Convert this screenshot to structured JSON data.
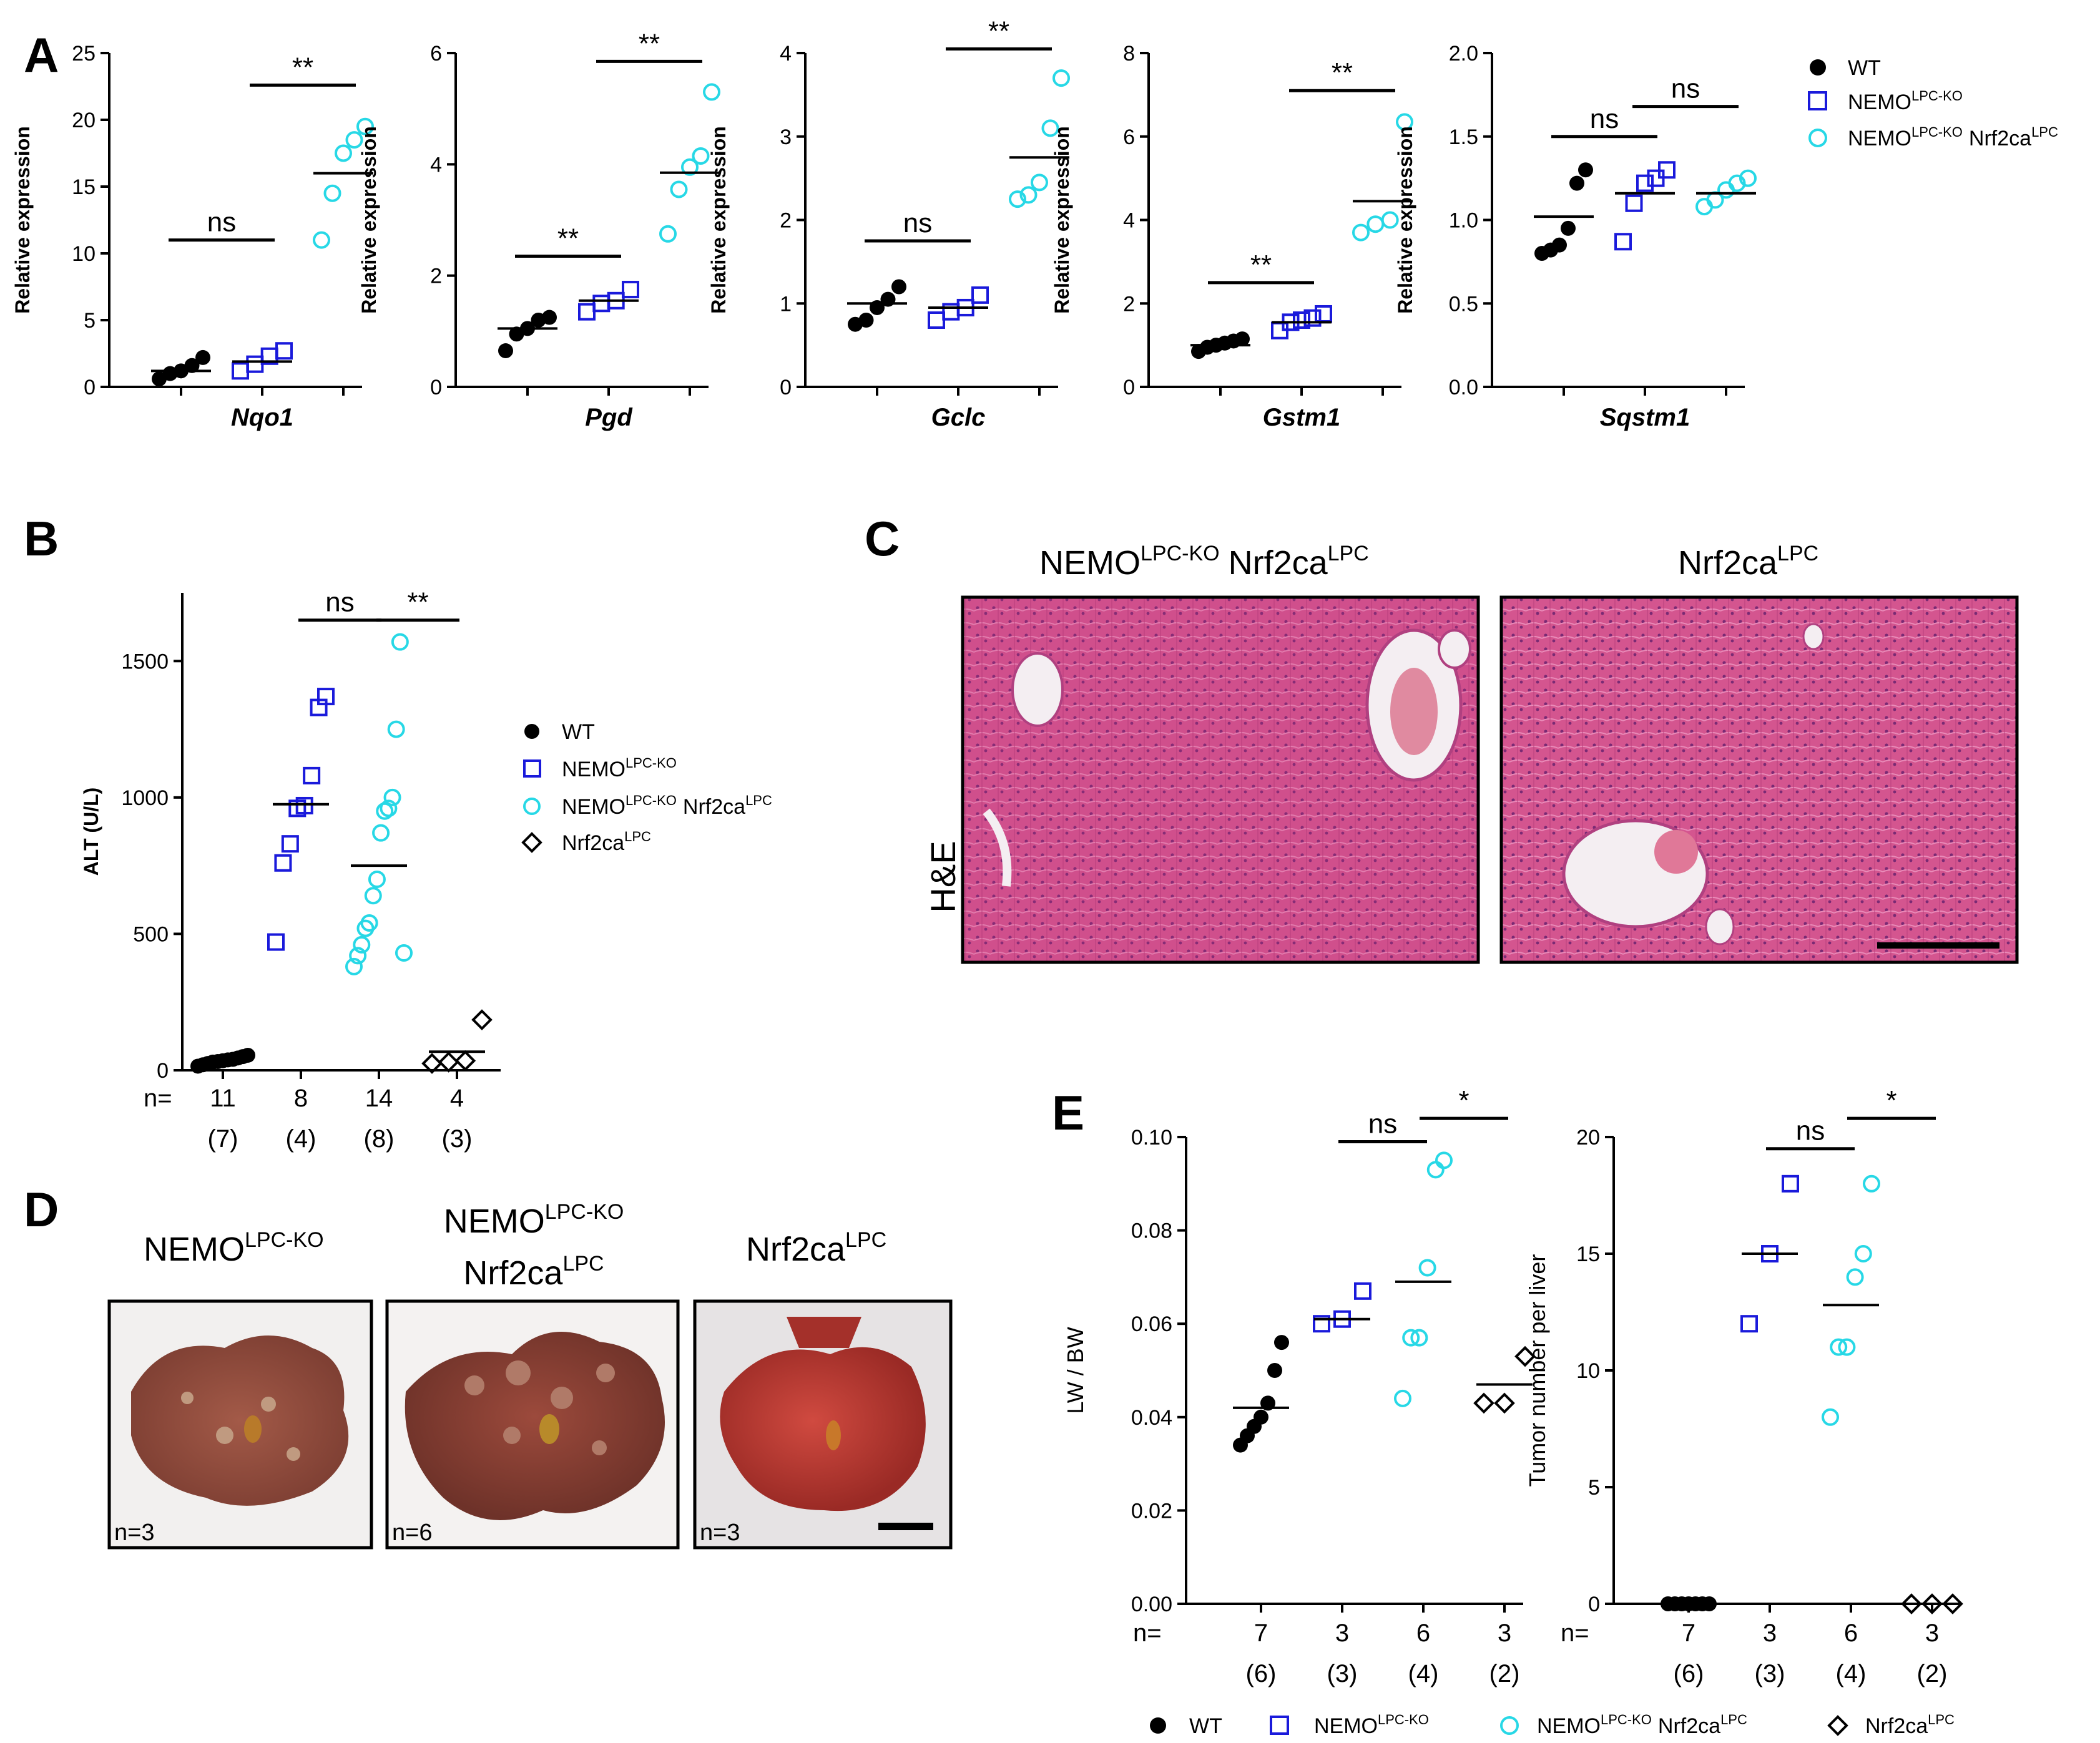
{
  "colors": {
    "wt": "#000000",
    "nemo": "#1a1adb",
    "nemo_nrf2": "#27d8e6",
    "nrf2": "#000000",
    "he_bg": "#d0508c",
    "he_dark": "#a8306c",
    "liver_red": "#b34a3a",
    "liver_brown": "#8c4a3c"
  },
  "groups": {
    "wt": "WT",
    "nemo": "NEMO",
    "nemo_sup": "LPC-KO",
    "nrf2": "Nrf2ca",
    "nrf2_sup": "LPC"
  },
  "panels": {
    "A": "A",
    "B": "B",
    "C": "C",
    "D": "D",
    "E": "E"
  },
  "panelA": {
    "ylabel": "Relative expression",
    "legend": [
      "WT",
      "NEMO",
      "NEMO Nrf2ca"
    ],
    "charts": [
      {
        "gene": "Nqo1",
        "ylim": [
          0,
          25
        ],
        "yticks": [
          "0",
          "5",
          "10",
          "15",
          "20",
          "25"
        ],
        "tickvals": [
          0,
          5,
          10,
          15,
          20,
          25
        ],
        "wt": [
          0.6,
          1.0,
          1.2,
          1.6,
          2.2
        ],
        "wt_mean": 1.2,
        "nemo": [
          1.2,
          1.7,
          2.3,
          2.7
        ],
        "nemo_mean": 1.9,
        "nemo_nrf2": [
          11.0,
          14.5,
          17.5,
          18.5,
          19.5
        ],
        "nemo_nrf2_mean": 16.0,
        "sig": [
          {
            "label": "ns",
            "from": 0,
            "to": 1,
            "y": 11
          },
          {
            "label": "**",
            "from": 1,
            "to": 2,
            "y": 22.6
          }
        ]
      },
      {
        "gene": "Pgd",
        "ylim": [
          0,
          6
        ],
        "yticks": [
          "0",
          "2",
          "4",
          "6"
        ],
        "tickvals": [
          0,
          2,
          4,
          6
        ],
        "wt": [
          0.65,
          0.95,
          1.05,
          1.2,
          1.25
        ],
        "wt_mean": 1.05,
        "nemo": [
          1.35,
          1.5,
          1.55,
          1.75
        ],
        "nemo_mean": 1.55,
        "nemo_nrf2": [
          2.75,
          3.55,
          3.95,
          4.15,
          5.3
        ],
        "nemo_nrf2_mean": 3.85,
        "sig": [
          {
            "label": "**",
            "from": 0,
            "to": 1,
            "y": 2.35
          },
          {
            "label": "**",
            "from": 1,
            "to": 2,
            "y": 5.85
          }
        ]
      },
      {
        "gene": "Gclc",
        "ylim": [
          0,
          4
        ],
        "yticks": [
          "0",
          "1",
          "2",
          "3",
          "4"
        ],
        "tickvals": [
          0,
          1,
          2,
          3,
          4
        ],
        "wt": [
          0.75,
          0.8,
          0.95,
          1.05,
          1.2
        ],
        "wt_mean": 1.0,
        "nemo": [
          0.8,
          0.9,
          0.95,
          1.1
        ],
        "nemo_mean": 0.95,
        "nemo_nrf2": [
          2.25,
          2.3,
          2.45,
          3.1,
          3.7
        ],
        "nemo_nrf2_mean": 2.75,
        "sig": [
          {
            "label": "ns",
            "from": 0,
            "to": 1,
            "y": 1.75
          },
          {
            "label": "**",
            "from": 1,
            "to": 2,
            "y": 4.05
          }
        ]
      },
      {
        "gene": "Gstm1",
        "ylim": [
          0,
          8
        ],
        "yticks": [
          "0",
          "2",
          "4",
          "6",
          "8"
        ],
        "tickvals": [
          0,
          2,
          4,
          6,
          8
        ],
        "wt": [
          0.85,
          0.95,
          1.0,
          1.05,
          1.1,
          1.15
        ],
        "wt_mean": 1.0,
        "nemo": [
          1.35,
          1.55,
          1.6,
          1.65,
          1.75
        ],
        "nemo_mean": 1.55,
        "nemo_nrf2": [
          3.7,
          3.9,
          4.0,
          6.35
        ],
        "nemo_nrf2_mean": 4.45,
        "sig": [
          {
            "label": "**",
            "from": 0,
            "to": 1,
            "y": 2.5
          },
          {
            "label": "**",
            "from": 1,
            "to": 2,
            "y": 7.1
          }
        ]
      },
      {
        "gene": "Sqstm1",
        "ylim": [
          0,
          2
        ],
        "yticks": [
          "0.0",
          "0.5",
          "1.0",
          "1.5",
          "2.0"
        ],
        "tickvals": [
          0,
          0.5,
          1.0,
          1.5,
          2.0
        ],
        "wt": [
          0.8,
          0.82,
          0.85,
          0.95,
          1.22,
          1.3
        ],
        "wt_mean": 1.02,
        "nemo": [
          0.87,
          1.1,
          1.22,
          1.25,
          1.3
        ],
        "nemo_mean": 1.16,
        "nemo_nrf2": [
          1.08,
          1.12,
          1.18,
          1.22,
          1.25
        ],
        "nemo_nrf2_mean": 1.16,
        "sig": [
          {
            "label": "ns",
            "from": 0,
            "to": 1,
            "y": 1.5
          },
          {
            "label": "ns",
            "from": 1,
            "to": 2,
            "y": 1.68
          }
        ]
      }
    ]
  },
  "panelB": {
    "ylabel": "ALT (U/L)",
    "ylim": [
      0,
      1750
    ],
    "yticks": [
      "0",
      "500",
      "1000",
      "1500"
    ],
    "tickvals": [
      0,
      500,
      1000,
      1500
    ],
    "n_prefix": "n=",
    "n": [
      "11",
      "8",
      "14",
      "4"
    ],
    "n_paren": [
      "(7)",
      "(4)",
      "(8)",
      "(3)"
    ],
    "wt": [
      15,
      20,
      25,
      30,
      32,
      35,
      38,
      40,
      45,
      50,
      55
    ],
    "wt_mean": 35,
    "nemo": [
      470,
      760,
      830,
      960,
      970,
      1080,
      1330,
      1370
    ],
    "nemo_mean": 975,
    "nemo_nrf2": [
      380,
      420,
      460,
      520,
      540,
      640,
      700,
      870,
      950,
      960,
      1000,
      1250,
      1570,
      430
    ],
    "nemo_nrf2_mean": 750,
    "nrf2": [
      25,
      30,
      35,
      185
    ],
    "nrf2_mean": 68,
    "sig": [
      {
        "label": "ns",
        "from": 1,
        "to": 2,
        "y": 1650
      },
      {
        "label": "**",
        "from": 2,
        "to": 3,
        "y": 1650
      }
    ],
    "legend": [
      "WT",
      "NEMO",
      "NEMO Nrf2ca",
      "Nrf2ca"
    ]
  },
  "panelC": {
    "titles": [
      "NEMO Nrf2ca",
      "Nrf2ca"
    ],
    "stain": "H&E"
  },
  "panelD": {
    "titles": [
      "NEMO",
      "NEMO Nrf2ca",
      "Nrf2ca"
    ],
    "counts": [
      "n=3",
      "n=6",
      "n=3"
    ]
  },
  "panelE": {
    "left": {
      "ylabel": "LW / BW",
      "ylim": [
        0,
        0.1
      ],
      "yticks": [
        "0.00",
        "0.02",
        "0.04",
        "0.06",
        "0.08",
        "0.10"
      ],
      "tickvals": [
        0,
        0.02,
        0.04,
        0.06,
        0.08,
        0.1
      ],
      "wt": [
        0.034,
        0.036,
        0.038,
        0.04,
        0.043,
        0.05,
        0.056
      ],
      "wt_mean": 0.042,
      "nemo": [
        0.06,
        0.061,
        0.067
      ],
      "nemo_mean": 0.061,
      "nemo_nrf2": [
        0.044,
        0.057,
        0.057,
        0.072,
        0.093,
        0.095
      ],
      "nemo_nrf2_mean": 0.069,
      "nrf2": [
        0.043,
        0.043,
        0.053
      ],
      "nrf2_mean": 0.047,
      "sig": [
        {
          "label": "ns",
          "from": 1,
          "to": 2,
          "y": 0.099
        },
        {
          "label": "*",
          "from": 2,
          "to": 3,
          "y": 0.104
        }
      ]
    },
    "right": {
      "ylabel": "Tumor number per liver",
      "ylim": [
        0,
        20
      ],
      "yticks": [
        "0",
        "5",
        "10",
        "15",
        "20"
      ],
      "tickvals": [
        0,
        5,
        10,
        15,
        20
      ],
      "wt": [
        0,
        0,
        0,
        0,
        0,
        0,
        0
      ],
      "wt_mean": 0,
      "nemo": [
        12,
        15,
        18
      ],
      "nemo_mean": 15,
      "nemo_nrf2": [
        8,
        11,
        11,
        14,
        15,
        18
      ],
      "nemo_nrf2_mean": 12.8,
      "nrf2": [
        0,
        0,
        0
      ],
      "nrf2_mean": 0,
      "sig": [
        {
          "label": "ns",
          "from": 1,
          "to": 2,
          "y": 19.5
        },
        {
          "label": "*",
          "from": 2,
          "to": 3,
          "y": 20.8
        }
      ]
    },
    "n_prefix": "n=",
    "n": [
      "7",
      "3",
      "6",
      "3"
    ],
    "n_paren": [
      "(6)",
      "(3)",
      "(4)",
      "(2)"
    ],
    "legend": [
      "WT",
      "NEMO",
      "NEMO Nrf2ca",
      "Nrf2ca"
    ]
  }
}
